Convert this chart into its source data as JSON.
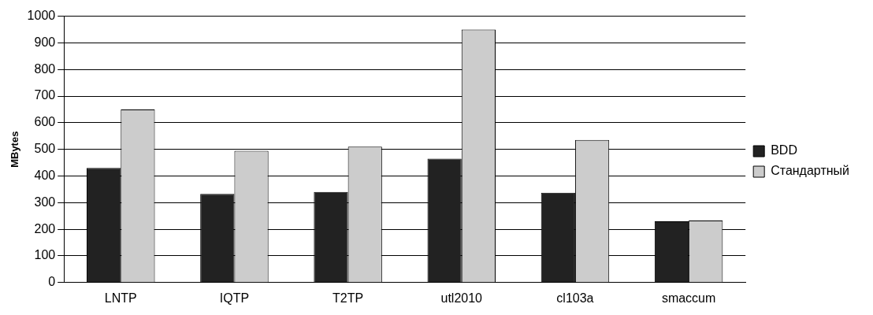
{
  "chart_data": {
    "type": "bar",
    "ylabel": "MBytes",
    "categories": [
      "LNTP",
      "IQTP",
      "T2TP",
      "utl2010",
      "cl103a",
      "smaccum"
    ],
    "series": [
      {
        "name": "BDD",
        "color": "#222222",
        "values": [
          430,
          333,
          340,
          465,
          337,
          230
        ]
      },
      {
        "name": "Стандартный",
        "color": "#cccccc",
        "values": [
          650,
          495,
          510,
          950,
          535,
          233
        ]
      }
    ],
    "ylim": [
      0,
      1000
    ],
    "yticks": [
      0,
      100,
      200,
      300,
      400,
      500,
      600,
      700,
      800,
      900,
      1000
    ],
    "grid": "y",
    "legend": "right"
  }
}
